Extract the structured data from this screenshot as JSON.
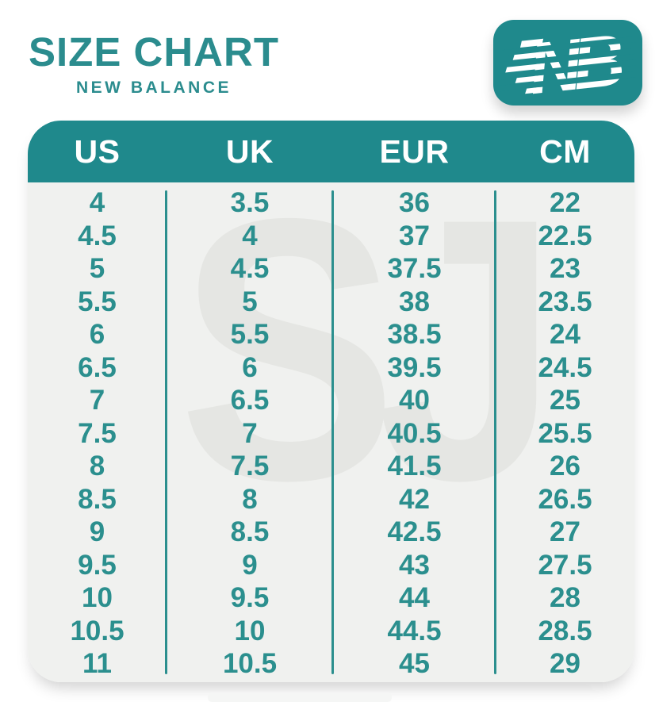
{
  "header": {
    "title": "SIZE CHART",
    "subtitle": "NEW BALANCE"
  },
  "logo": {
    "letters": "NB"
  },
  "watermark": {
    "text": "SJ"
  },
  "colors": {
    "teal": "#1f898c",
    "text_teal": "#2b8f8e",
    "table_bg": "#f0f1ef",
    "watermark_gray": "#e5e6e3",
    "white": "#ffffff"
  },
  "chart_data": {
    "type": "table",
    "title": "SIZE CHART",
    "subtitle": "NEW BALANCE",
    "columns": [
      "US",
      "UK",
      "EUR",
      "CM"
    ],
    "rows": [
      [
        "4",
        "3.5",
        "36",
        "22"
      ],
      [
        "4.5",
        "4",
        "37",
        "22.5"
      ],
      [
        "5",
        "4.5",
        "37.5",
        "23"
      ],
      [
        "5.5",
        "5",
        "38",
        "23.5"
      ],
      [
        "6",
        "5.5",
        "38.5",
        "24"
      ],
      [
        "6.5",
        "6",
        "39.5",
        "24.5"
      ],
      [
        "7",
        "6.5",
        "40",
        "25"
      ],
      [
        "7.5",
        "7",
        "40.5",
        "25.5"
      ],
      [
        "8",
        "7.5",
        "41.5",
        "26"
      ],
      [
        "8.5",
        "8",
        "42",
        "26.5"
      ],
      [
        "9",
        "8.5",
        "42.5",
        "27"
      ],
      [
        "9.5",
        "9",
        "43",
        "27.5"
      ],
      [
        "10",
        "9.5",
        "44",
        "28"
      ],
      [
        "10.5",
        "10",
        "44.5",
        "28.5"
      ],
      [
        "11",
        "10.5",
        "45",
        "29"
      ]
    ]
  }
}
